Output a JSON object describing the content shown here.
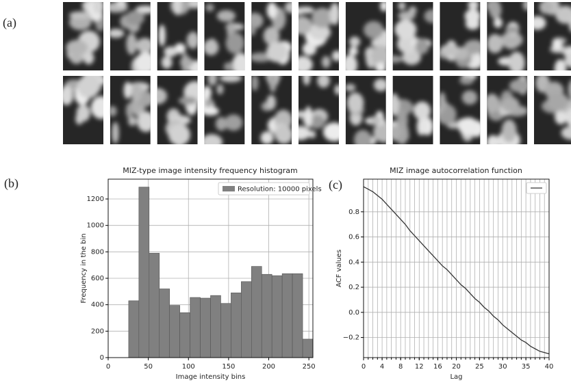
{
  "image_panel": {
    "label": "(a)"
  },
  "chart_data": [
    {
      "type": "histogram",
      "panel_label": "(b)",
      "title": "MIZ-type image intensity  frequency histogram",
      "x_label": "Image intensity bins",
      "y_label": "Frequency in the bin",
      "bins": [
        0,
        12.75,
        25.5,
        38.25,
        51,
        63.75,
        76.5,
        89.25,
        102,
        114.75,
        127.5,
        140.25,
        153,
        165.75,
        178.5,
        191.25,
        204,
        216.75,
        229.5,
        242.25,
        255
      ],
      "series": [
        {
          "name": "Resolution: 10000 pixels",
          "color": "#808080",
          "values": [
            0,
            0,
            430,
            1290,
            790,
            520,
            395,
            340,
            455,
            450,
            470,
            410,
            490,
            575,
            690,
            630,
            620,
            635,
            635,
            140
          ]
        }
      ],
      "xlim": [
        0,
        255
      ],
      "ylim": [
        0,
        1350
      ],
      "xticks": [
        0,
        50,
        100,
        150,
        200,
        250
      ],
      "yticks": [
        0,
        200,
        400,
        600,
        800,
        1000,
        1200
      ],
      "grid": true,
      "legend": "upper right"
    },
    {
      "type": "line",
      "panel_label": "(c)",
      "title": "MIZ image autocorrelation function",
      "x_label": "Lag",
      "y_label": "ACF values",
      "x": [
        0,
        1,
        2,
        3,
        4,
        5,
        6,
        7,
        8,
        9,
        10,
        11,
        12,
        13,
        14,
        15,
        16,
        17,
        18,
        19,
        20,
        21,
        22,
        23,
        24,
        25,
        26,
        27,
        28,
        29,
        30,
        31,
        32,
        33,
        34,
        35,
        36,
        37,
        38,
        39,
        40
      ],
      "series": [
        {
          "color": "#333333",
          "values": [
            1.0,
            0.98,
            0.96,
            0.93,
            0.9,
            0.86,
            0.82,
            0.78,
            0.74,
            0.7,
            0.65,
            0.61,
            0.57,
            0.53,
            0.49,
            0.45,
            0.41,
            0.37,
            0.34,
            0.3,
            0.26,
            0.22,
            0.19,
            0.15,
            0.11,
            0.08,
            0.04,
            0.01,
            -0.03,
            -0.06,
            -0.1,
            -0.13,
            -0.16,
            -0.19,
            -0.22,
            -0.24,
            -0.27,
            -0.29,
            -0.31,
            -0.32,
            -0.33
          ]
        }
      ],
      "xlim": [
        0,
        40
      ],
      "ylim": [
        -0.36,
        1.06
      ],
      "xticks": [
        0,
        4,
        8,
        12,
        16,
        20,
        25,
        30,
        35,
        40
      ],
      "x_minor_ticks": [
        0,
        1,
        2,
        3,
        4,
        5,
        6,
        7,
        8,
        9,
        10,
        11,
        12,
        13,
        14,
        15,
        16,
        17,
        18,
        19,
        20,
        21,
        22,
        23,
        24,
        25,
        26,
        27,
        28,
        29,
        30,
        31,
        32,
        33,
        34,
        35,
        36,
        37,
        38,
        39,
        40
      ],
      "yticks": [
        {
          "value": -0.2,
          "label": "−0.2"
        },
        {
          "value": 0,
          "label": "0.0"
        },
        0.2,
        0.4,
        0.6,
        0.8
      ],
      "grid": true,
      "legend": "upper right"
    }
  ]
}
